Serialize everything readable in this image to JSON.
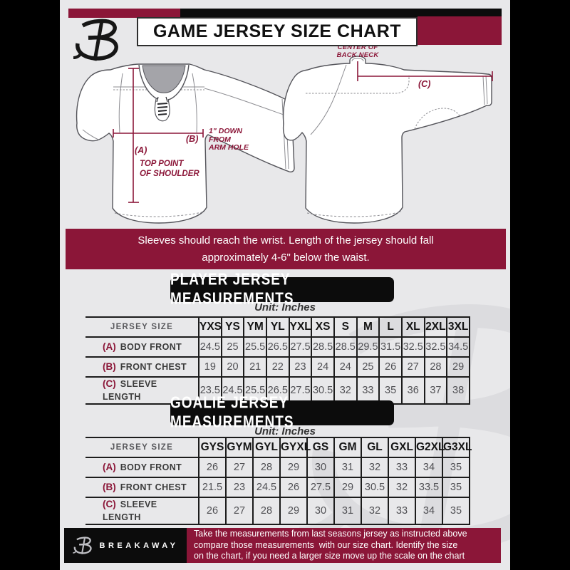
{
  "colors": {
    "maroon": "#8b1638",
    "ink": "#0c0c0c",
    "bg": "#e8e8ea",
    "silver": "#bfbfc4",
    "watermark": "#dcdcdf"
  },
  "header": {
    "title": "GAME JERSEY SIZE CHART"
  },
  "diagram": {
    "center_back_neck": "CENTER OF\nBACK NECK",
    "label_a": "(A)",
    "label_b": "(B)",
    "label_c": "(C)",
    "top_point_of_shoulder": "TOP POINT\nOF SHOULDER",
    "down_from_armhole": "1\" DOWN\nFROM\nARM HOLE"
  },
  "banner": {
    "text": "Sleeves should reach the wrist. Length of the jersey should fall\napproximately 4-6\" below the waist."
  },
  "player_section": {
    "title": "PLAYER JERSEY MEASUREMENTS",
    "unit": "Unit: Inches",
    "table": {
      "corner": "JERSEY SIZE",
      "sizes": [
        "YXS",
        "YS",
        "YM",
        "YL",
        "YXL",
        "XS",
        "S",
        "M",
        "L",
        "XL",
        "2XL",
        "3XL"
      ],
      "rows": [
        {
          "prefix": "(A)",
          "label": "BODY FRONT",
          "values": [
            "24.5",
            "25",
            "25.5",
            "26.5",
            "27.5",
            "28.5",
            "28.5",
            "29.5",
            "31.5",
            "32.5",
            "32.5",
            "34.5"
          ]
        },
        {
          "prefix": "(B)",
          "label": "FRONT CHEST",
          "values": [
            "19",
            "20",
            "21",
            "22",
            "23",
            "24",
            "24",
            "25",
            "26",
            "27",
            "28",
            "29"
          ]
        },
        {
          "prefix": "(C)",
          "label": "SLEEVE LENGTH",
          "values": [
            "23.5",
            "24.5",
            "25.5",
            "26.5",
            "27.5",
            "30.5",
            "32",
            "33",
            "35",
            "36",
            "37",
            "38"
          ]
        }
      ]
    }
  },
  "goalie_section": {
    "title": "GOALIE JERSEY MEASUREMENTS",
    "unit": "Unit: Inches",
    "table": {
      "corner": "JERSEY SIZE",
      "sizes": [
        "GYS",
        "GYM",
        "GYL",
        "GYXL",
        "GS",
        "GM",
        "GL",
        "GXL",
        "G2XL",
        "G3XL"
      ],
      "rows": [
        {
          "prefix": "(A)",
          "label": "BODY FRONT",
          "values": [
            "26",
            "27",
            "28",
            "29",
            "30",
            "31",
            "32",
            "33",
            "34",
            "35"
          ]
        },
        {
          "prefix": "(B)",
          "label": "FRONT CHEST",
          "values": [
            "21.5",
            "23",
            "24.5",
            "26",
            "27.5",
            "29",
            "30.5",
            "32",
            "33.5",
            "35"
          ]
        },
        {
          "prefix": "(C)",
          "label": "SLEEVE LENGTH",
          "values": [
            "26",
            "27",
            "28",
            "29",
            "30",
            "31",
            "32",
            "33",
            "34",
            "35"
          ]
        }
      ]
    }
  },
  "footer": {
    "brand": "BREAKAWAY",
    "note": "Take the measurements from last seasons jersey as instructed above\ncompare those measurements  with our size chart. Identify the size\non the chart, if you need a larger size move up the scale on the chart"
  }
}
